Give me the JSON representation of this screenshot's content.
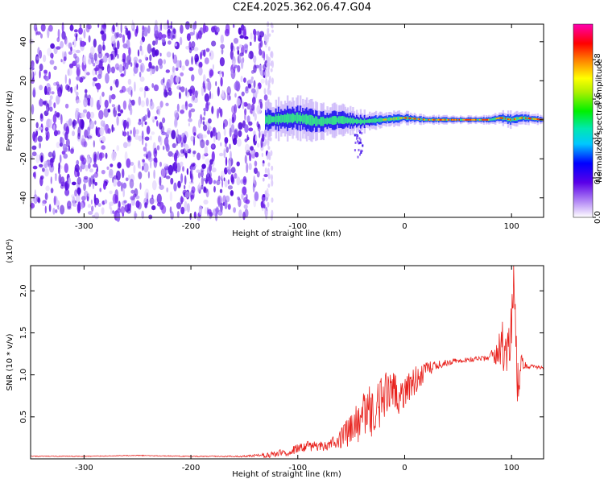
{
  "title": "C2E4.2025.362.06.47.G04",
  "colors": {
    "spectrogram_noise": "#6a1fe8",
    "ridge": "#33e08a",
    "snr_line": "#e8211c",
    "frame": "#000000"
  },
  "chart_data": [
    {
      "type": "heatmap",
      "title": "C2E4.2025.362.06.47.G04",
      "xlabel": "Height of straight line (km)",
      "ylabel": "Frequency (Hz)",
      "xlim": [
        -350,
        130
      ],
      "ylim": [
        -50,
        49
      ],
      "xticks": [
        -300,
        -200,
        -100,
        0,
        100
      ],
      "yticks": [
        -40,
        -20,
        0,
        20,
        40
      ],
      "noise_extent_km": [
        -350,
        -128
      ],
      "ridge": {
        "x": [
          -130,
          -100,
          -80,
          -60,
          -40,
          -20,
          0,
          20,
          40,
          60,
          80,
          90,
          100,
          110,
          130
        ],
        "frequency": [
          0,
          1,
          -1,
          0,
          -1,
          0,
          1,
          0,
          0,
          0,
          0,
          1,
          0,
          1,
          0
        ],
        "bandwidth": [
          8,
          10,
          9,
          7,
          5,
          4,
          3,
          2,
          2,
          2,
          2,
          3,
          4,
          3,
          2
        ]
      },
      "colorbar": {
        "label": "Normalized spectral amplitude",
        "range": [
          0,
          0.98
        ],
        "ticks": [
          "0.0",
          "0.2",
          "0.4",
          "0.6",
          "0.8"
        ]
      }
    },
    {
      "type": "line",
      "xlabel": "Height of straight line (km)",
      "ylabel": "SNR (10 * v/v)",
      "y_multiplier": "(x10⁴)",
      "xlim": [
        -350,
        130
      ],
      "ylim": [
        0,
        2.3
      ],
      "xticks": [
        -300,
        -200,
        -100,
        0,
        100
      ],
      "yticks": [
        "0.5",
        "1.0",
        "1.5",
        "2.0"
      ],
      "series": [
        {
          "x": [
            -350,
            -300,
            -250,
            -200,
            -150,
            -130,
            -110,
            -100,
            -90,
            -80,
            -70,
            -60,
            -50,
            -40,
            -30,
            -20,
            -10,
            0,
            10,
            20,
            30,
            40,
            50,
            60,
            70,
            80,
            85,
            90,
            95,
            100,
            103,
            105,
            110,
            115,
            120,
            130
          ],
          "values": [
            0.03,
            0.03,
            0.04,
            0.03,
            0.03,
            0.04,
            0.08,
            0.12,
            0.15,
            0.15,
            0.18,
            0.25,
            0.35,
            0.45,
            0.6,
            0.7,
            0.75,
            0.85,
            0.95,
            1.05,
            1.12,
            1.15,
            1.17,
            1.18,
            1.2,
            1.2,
            1.25,
            1.3,
            1.4,
            1.5,
            2.25,
            0.8,
            1.15,
            1.1,
            1.1,
            1.08
          ],
          "noise": [
            0.005,
            0.005,
            0.005,
            0.005,
            0.01,
            0.03,
            0.05,
            0.06,
            0.06,
            0.06,
            0.08,
            0.12,
            0.2,
            0.3,
            0.35,
            0.35,
            0.3,
            0.25,
            0.18,
            0.1,
            0.06,
            0.04,
            0.03,
            0.03,
            0.03,
            0.05,
            0.15,
            0.3,
            0.4,
            0.5,
            0.5,
            0.4,
            0.1,
            0.03,
            0.02,
            0.02
          ]
        }
      ]
    }
  ]
}
